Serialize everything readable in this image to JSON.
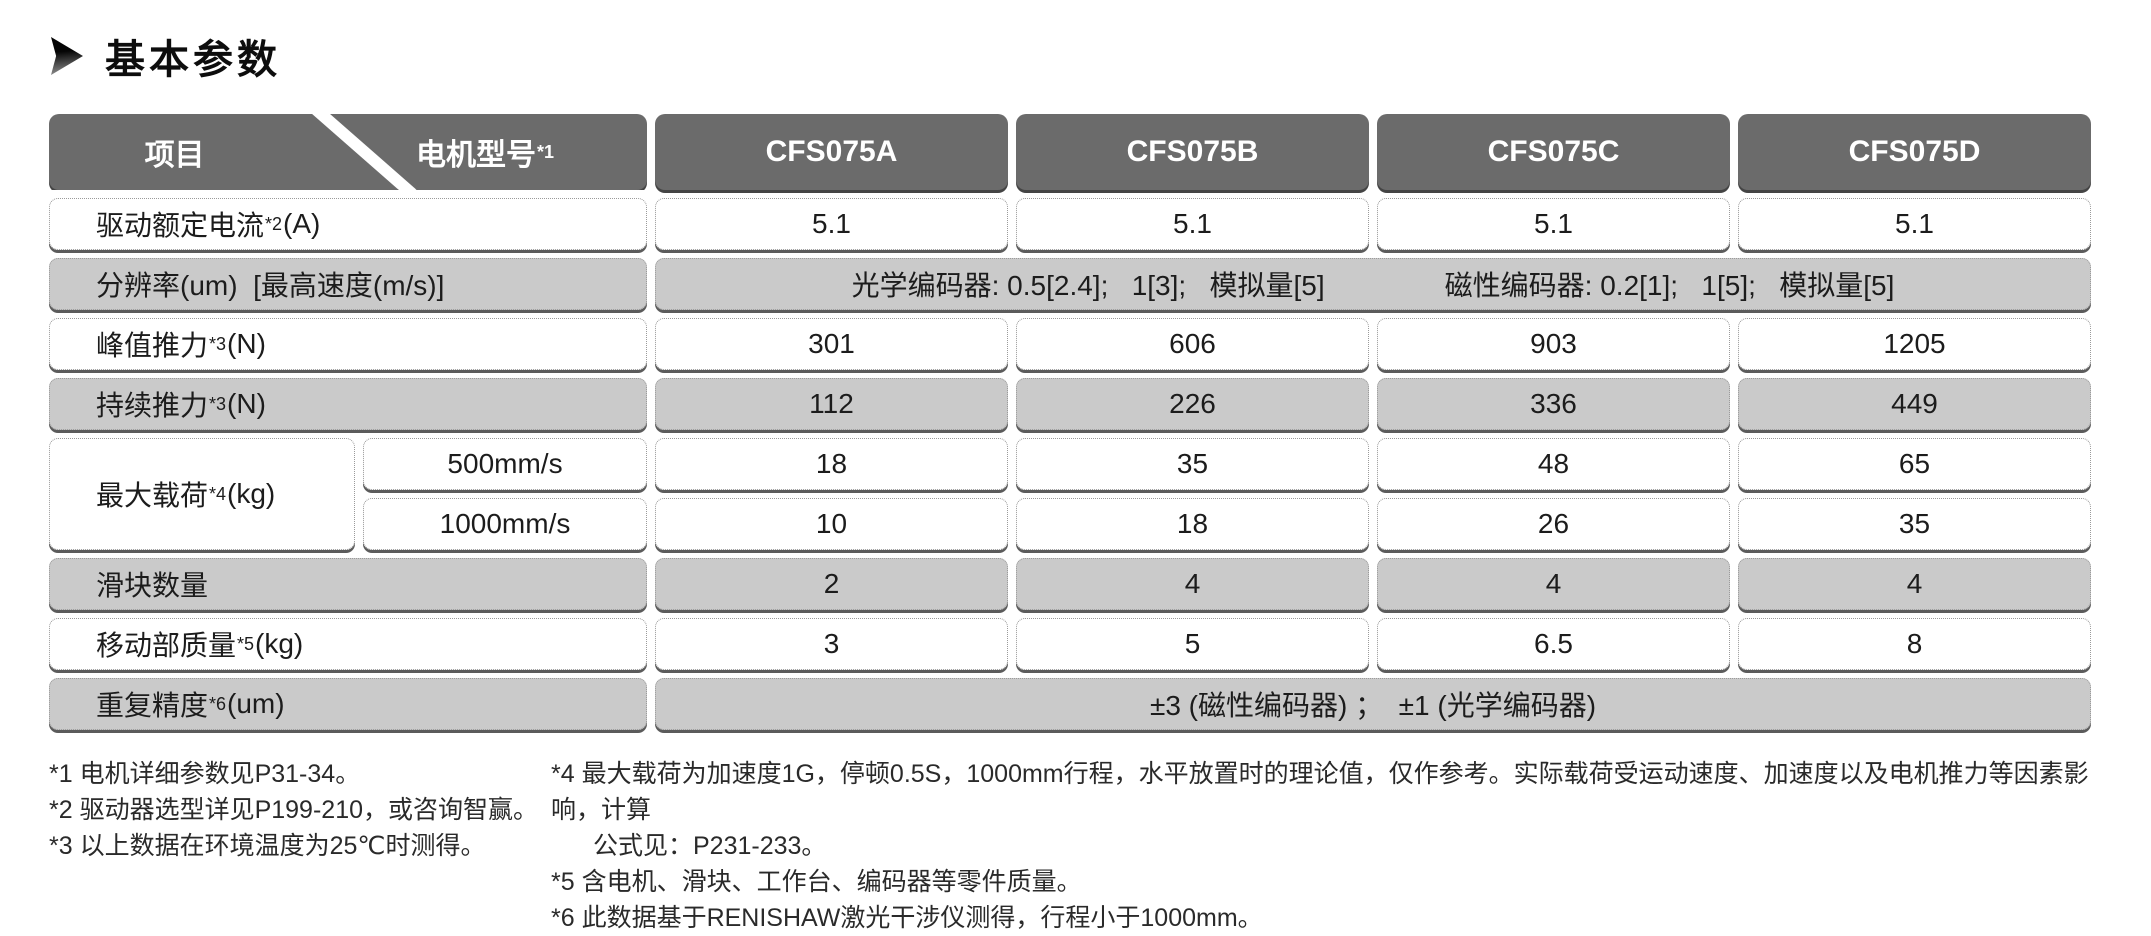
{
  "page": {
    "title": "基本参数"
  },
  "colors": {
    "header_bg": "#6b6b6b",
    "row_gray": "#cacaca",
    "row_white": "#ffffff",
    "cell_border": "#9a9a9a",
    "cell_shadow": "#2d2d2d",
    "header_text": "#ffffff",
    "body_text": "#1c1c1c"
  },
  "icons": {
    "title_arrow": "right-pointing-triangle"
  },
  "table": {
    "header": {
      "item_label": "项目",
      "model_label": "电机型号",
      "model_sup": "*1",
      "models": [
        "CFS075A",
        "CFS075B",
        "CFS075C",
        "CFS075D"
      ]
    },
    "rows": [
      {
        "label": "驱动额定电流",
        "sup": "*2",
        "unit": "(A)",
        "values": [
          "5.1",
          "5.1",
          "5.1",
          "5.1"
        ]
      },
      {
        "label": "分辨率(um)  [最高速度(m/s)]",
        "sup": "",
        "unit": "",
        "span_left": "光学编码器: 0.5[2.4];   1[3];   模拟量[5]",
        "span_right": "磁性编码器: 0.2[1];   1[5];   模拟量[5]"
      },
      {
        "label": "峰值推力",
        "sup": "*3",
        "unit": "(N)",
        "values": [
          "301",
          "606",
          "903",
          "1205"
        ]
      },
      {
        "label": "持续推力",
        "sup": "*3",
        "unit": "(N)",
        "values": [
          "112",
          "226",
          "336",
          "449"
        ]
      },
      {
        "label": "最大载荷",
        "sup": "*4",
        "unit": "(kg)",
        "speeds": [
          "500mm/s",
          "1000mm/s"
        ],
        "values_500": [
          "18",
          "35",
          "48",
          "65"
        ],
        "values_1000": [
          "10",
          "18",
          "26",
          "35"
        ]
      },
      {
        "label": "滑块数量",
        "sup": "",
        "unit": "",
        "values": [
          "2",
          "4",
          "4",
          "4"
        ]
      },
      {
        "label": "移动部质量",
        "sup": "*5",
        "unit": "(kg)",
        "values": [
          "3",
          "5",
          "6.5",
          "8"
        ]
      },
      {
        "label": "重复精度",
        "sup": "*6",
        "unit": "(um)",
        "span_center": "±3 (磁性编码器) ；  ±1 (光学编码器)"
      }
    ]
  },
  "footnotes": {
    "left": [
      "*1 电机详细参数见P31-34。",
      "*2 驱动器选型详见P199-210，或咨询智赢。",
      "*3 以上数据在环境温度为25℃时测得。"
    ],
    "right": [
      "*4 最大载荷为加速度1G，停顿0.5S，1000mm行程，水平放置时的理论值，仅作参考。实际载荷受运动速度、加速度以及电机推力等因素影响，计算",
      "公式见：P231-233。",
      "*5 含电机、滑块、工作台、编码器等零件质量。",
      "*6 此数据基于RENISHAW激光干涉仪测得，行程小于1000mm。"
    ]
  }
}
